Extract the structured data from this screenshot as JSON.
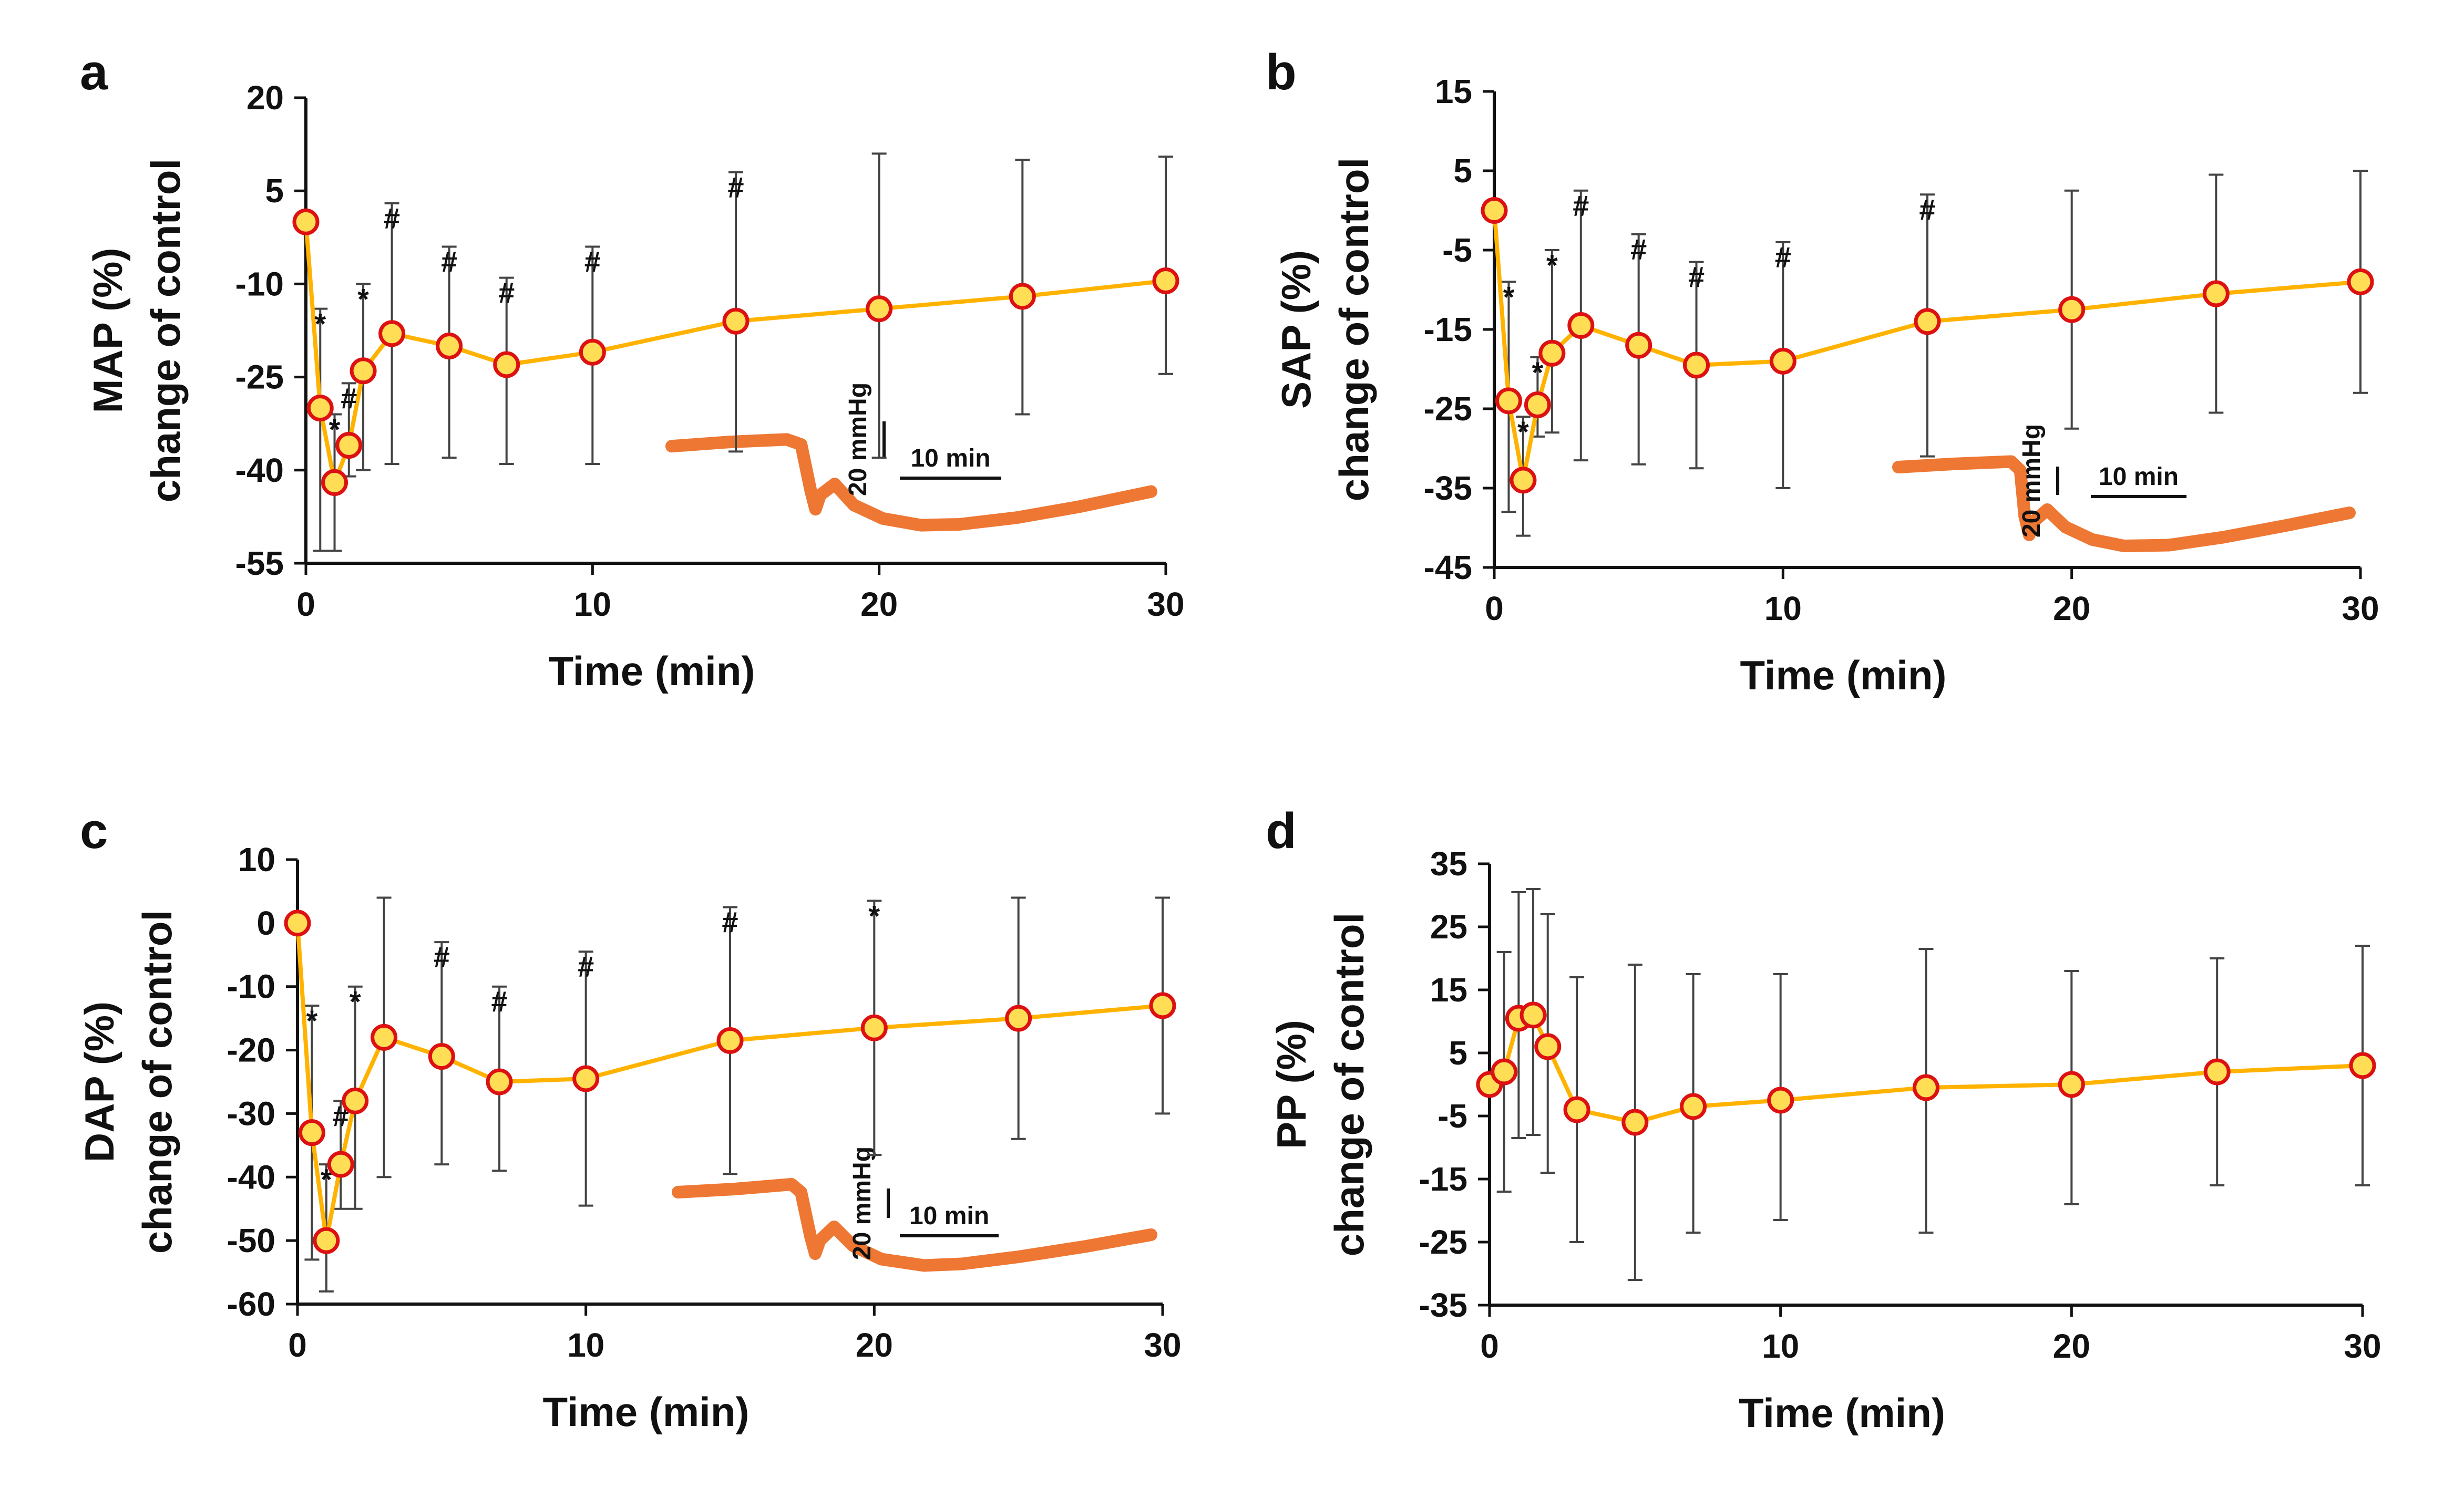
{
  "colors": {
    "line": "#ffb300",
    "marker_fill": "#ffdd55",
    "marker_edge": "#dd1111",
    "trace": "#ee7733",
    "axis": "#111111",
    "errorbar": "#444444"
  },
  "chart_data": [
    {
      "id": "a",
      "type": "line",
      "panel_label": "a",
      "ylabel": "MAP (%)",
      "ylabel2": "change of control",
      "xlabel": "Time (min)",
      "xlim": [
        0,
        30
      ],
      "ylim": [
        -55,
        20
      ],
      "xticks": [
        0,
        10,
        20,
        30
      ],
      "yticks": [
        20,
        5,
        -10,
        -25,
        -40,
        -55
      ],
      "series": [
        {
          "name": "MAP",
          "x": [
            0,
            0.5,
            1,
            1.5,
            2,
            3,
            5,
            7,
            10,
            15,
            20,
            25,
            30
          ],
          "y": [
            0,
            -30,
            -42,
            -36,
            -24,
            -18,
            -20,
            -23,
            -21,
            -16,
            -14,
            -12,
            -9.5
          ],
          "err_hi": [
            0,
            16,
            11,
            10,
            14,
            21,
            16,
            14,
            17,
            24,
            25,
            22,
            20
          ],
          "err_lo": [
            0,
            23,
            11,
            5,
            16,
            21,
            18,
            16,
            18,
            21,
            24,
            19,
            15
          ],
          "sig": [
            "",
            "*",
            "*",
            "#",
            "*",
            "#",
            "#",
            "#",
            "#",
            "#",
            "",
            "",
            ""
          ]
        }
      ],
      "inset": {
        "scale_y_label": "20 mmHg",
        "scale_x_label": "10 min",
        "trace": [
          [
            0,
            9.8
          ],
          [
            0.12,
            10.3
          ],
          [
            0.24,
            10.6
          ],
          [
            0.27,
            10
          ],
          [
            0.29,
            4.5
          ],
          [
            0.3,
            2.3
          ],
          [
            0.31,
            4
          ],
          [
            0.34,
            5.3
          ],
          [
            0.38,
            2.8
          ],
          [
            0.44,
            1.2
          ],
          [
            0.52,
            0.4
          ],
          [
            0.6,
            0.5
          ],
          [
            0.72,
            1.3
          ],
          [
            0.85,
            2.6
          ],
          [
            1,
            4.4
          ]
        ]
      }
    },
    {
      "id": "b",
      "type": "line",
      "panel_label": "b",
      "ylabel": "SAP (%)",
      "ylabel2": "change of control",
      "xlabel": "Time (min)",
      "xlim": [
        0,
        30
      ],
      "ylim": [
        -45,
        15
      ],
      "xticks": [
        0,
        10,
        20,
        30
      ],
      "yticks": [
        15,
        5,
        -5,
        -15,
        -25,
        -35,
        -45
      ],
      "series": [
        {
          "name": "SAP",
          "x": [
            0,
            0.5,
            1,
            1.5,
            2,
            3,
            5,
            7,
            10,
            15,
            20,
            25,
            30
          ],
          "y": [
            0,
            -24,
            -34,
            -24.5,
            -18,
            -14.5,
            -17,
            -19.5,
            -19,
            -14,
            -12.5,
            -10.5,
            -9
          ],
          "err_hi": [
            0,
            15,
            8,
            6,
            13,
            17,
            14,
            13,
            15,
            16,
            15,
            15,
            14
          ],
          "err_lo": [
            0,
            14,
            7,
            4,
            10,
            17,
            15,
            13,
            16,
            17,
            15,
            15,
            14
          ],
          "sig": [
            "",
            "*",
            "*",
            "*",
            "*",
            "#",
            "#",
            "#",
            "#",
            "#",
            "",
            "",
            ""
          ]
        }
      ],
      "inset": {
        "scale_y_label": "20 mmHg",
        "scale_x_label": "10 min",
        "trace": [
          [
            0,
            10.4
          ],
          [
            0.12,
            10.8
          ],
          [
            0.25,
            11.1
          ],
          [
            0.27,
            10
          ],
          [
            0.28,
            4.2
          ],
          [
            0.29,
            1.8
          ],
          [
            0.3,
            3.5
          ],
          [
            0.33,
            5
          ],
          [
            0.37,
            2.8
          ],
          [
            0.43,
            1.2
          ],
          [
            0.5,
            0.4
          ],
          [
            0.6,
            0.5
          ],
          [
            0.72,
            1.5
          ],
          [
            0.86,
            3
          ],
          [
            1,
            4.6
          ]
        ]
      }
    },
    {
      "id": "c",
      "type": "line",
      "panel_label": "c",
      "ylabel": "DAP (%)",
      "ylabel2": "change of control",
      "xlabel": "Time (min)",
      "xlim": [
        0,
        30
      ],
      "ylim": [
        -60,
        10
      ],
      "xticks": [
        0,
        10,
        20,
        30
      ],
      "yticks": [
        10,
        0,
        -10,
        -20,
        -30,
        -40,
        -50,
        -60
      ],
      "series": [
        {
          "name": "DAP",
          "x": [
            0,
            0.5,
            1,
            1.5,
            2,
            3,
            5,
            7,
            10,
            15,
            20,
            25,
            30
          ],
          "y": [
            0,
            -33,
            -50,
            -38,
            -28,
            -18,
            -21,
            -25,
            -24.5,
            -18.5,
            -16.5,
            -15,
            -13
          ],
          "err_hi": [
            0,
            20,
            12,
            10,
            18,
            22,
            18,
            15,
            20,
            21,
            20,
            19,
            17
          ],
          "err_lo": [
            0,
            20,
            8,
            7,
            17,
            22,
            17,
            14,
            20,
            21,
            20,
            19,
            17
          ],
          "sig": [
            "",
            "*",
            "*",
            "#",
            "*",
            "",
            "#",
            "#",
            "#",
            "#",
            "*",
            "",
            ""
          ]
        }
      ],
      "inset": {
        "scale_y_label": "20 mmHg",
        "scale_x_label": "10 min",
        "trace": [
          [
            0,
            9.6
          ],
          [
            0.12,
            10
          ],
          [
            0.24,
            10.6
          ],
          [
            0.26,
            9.6
          ],
          [
            0.28,
            4
          ],
          [
            0.29,
            1.8
          ],
          [
            0.3,
            3.5
          ],
          [
            0.33,
            5.2
          ],
          [
            0.37,
            2.8
          ],
          [
            0.43,
            1.1
          ],
          [
            0.52,
            0.3
          ],
          [
            0.6,
            0.5
          ],
          [
            0.72,
            1.4
          ],
          [
            0.86,
            2.7
          ],
          [
            1,
            4.2
          ]
        ]
      }
    },
    {
      "id": "d",
      "type": "line",
      "panel_label": "d",
      "ylabel": "PP (%)",
      "ylabel2": "change of control",
      "xlabel": "Time (min)",
      "xlim": [
        0,
        30
      ],
      "ylim": [
        -35,
        35
      ],
      "xticks": [
        0,
        10,
        20,
        30
      ],
      "yticks": [
        35,
        25,
        15,
        5,
        -5,
        -15,
        -25,
        -35
      ],
      "series": [
        {
          "name": "PP",
          "x": [
            0,
            0.5,
            1,
            1.5,
            2,
            3,
            5,
            7,
            10,
            15,
            20,
            25,
            30
          ],
          "y": [
            0,
            2,
            10.5,
            11,
            6,
            -4,
            -6,
            -3.5,
            -2.5,
            -0.5,
            0,
            2,
            3
          ],
          "err_hi": [
            0,
            19,
            20,
            20,
            21,
            21,
            25,
            21,
            20,
            22,
            18,
            18,
            19
          ],
          "err_lo": [
            0,
            19,
            19,
            19,
            20,
            21,
            25,
            20,
            19,
            23,
            19,
            18,
            19
          ],
          "sig": [
            "",
            "",
            "",
            "",
            "",
            "",
            "",
            "",
            "",
            "",
            "",
            "",
            ""
          ]
        }
      ]
    }
  ]
}
